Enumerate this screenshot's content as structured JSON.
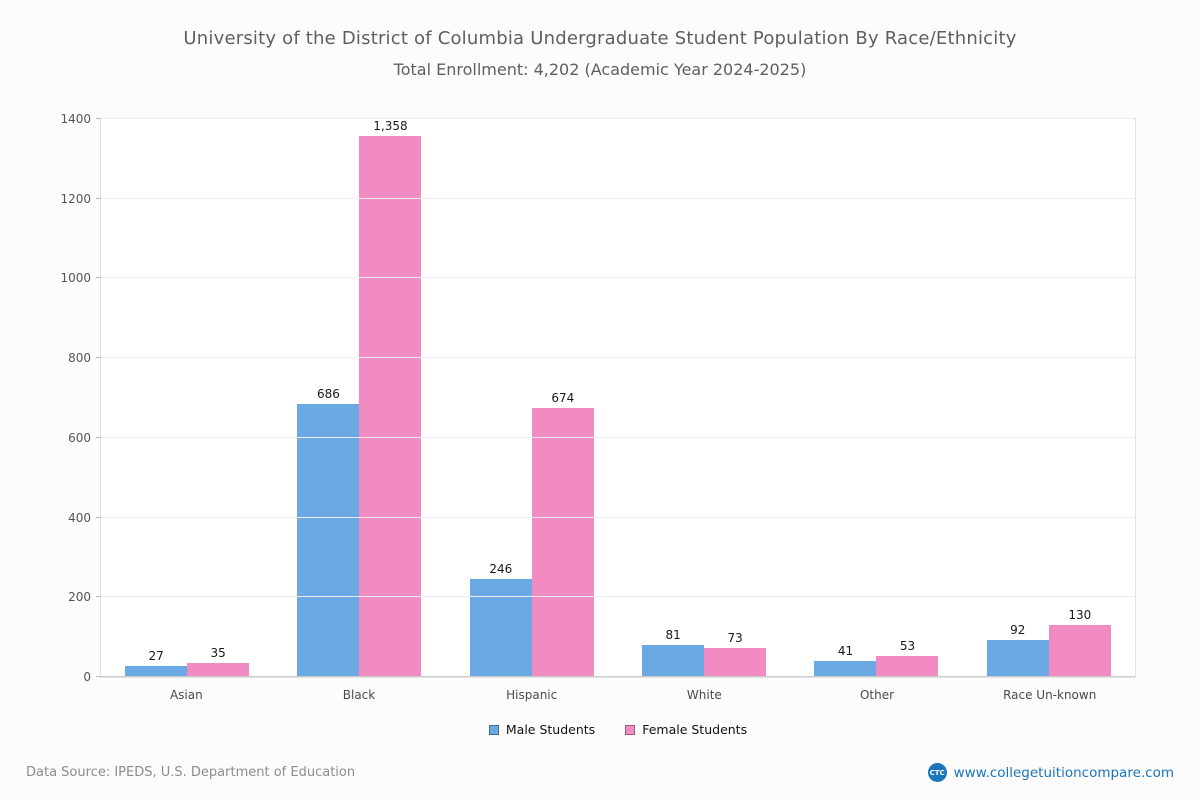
{
  "chart_data": {
    "type": "bar",
    "title": "University of the District of Columbia Undergraduate Student Population By Race/Ethnicity",
    "subtitle": "Total Enrollment: 4,202 (Academic Year 2024-2025)",
    "categories": [
      "Asian",
      "Black",
      "Hispanic",
      "White",
      "Other",
      "Race Un-known"
    ],
    "series": [
      {
        "name": "Male Students",
        "color": "#6aa9e4",
        "values": [
          27,
          686,
          246,
          81,
          41,
          92
        ]
      },
      {
        "name": "Female Students",
        "color": "#f18bc2",
        "values": [
          35,
          1358,
          674,
          73,
          53,
          130
        ]
      }
    ],
    "xlabel": "",
    "ylabel": "",
    "ylim": [
      0,
      1400
    ],
    "ytick_step": 200,
    "grid": true,
    "legend_position": "bottom",
    "value_labels": true
  },
  "footer": {
    "source": "Data Source: IPEDS, U.S. Department of Education",
    "website": "www.collegetuitioncompare.com",
    "logo_text": "CTC"
  }
}
